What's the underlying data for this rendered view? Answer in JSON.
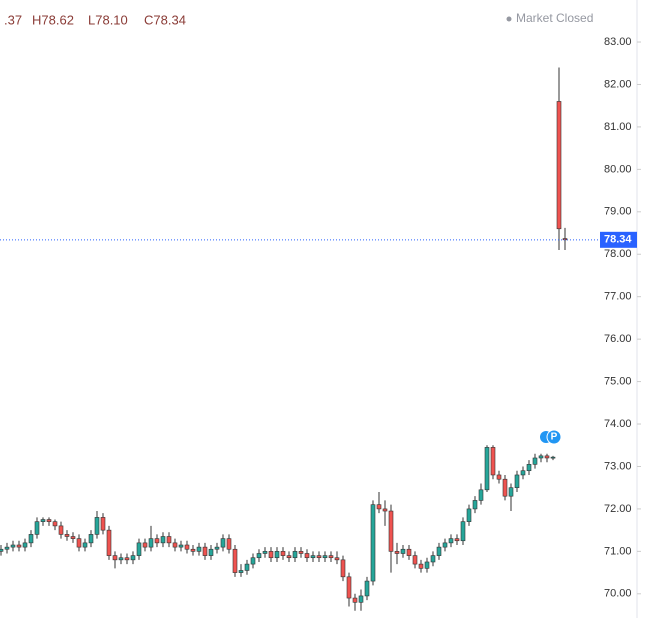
{
  "chart_data": {
    "type": "candlestick",
    "ohlc_header": [
      ".37",
      "H78.62",
      "L78.10",
      "C78.34"
    ],
    "status": "Market Closed",
    "marker": "P",
    "last_price": {
      "value": 78.34,
      "label": "78.34"
    },
    "up_color": "#26a69a",
    "down_color": "#ef5350",
    "ylim": [
      69.43,
      83.99
    ],
    "yticks": [
      {
        "value": 70,
        "label": "70.00"
      },
      {
        "value": 71,
        "label": "71.00"
      },
      {
        "value": 72,
        "label": "72.00"
      },
      {
        "value": 73,
        "label": "73.00"
      },
      {
        "value": 74,
        "label": "74.00"
      },
      {
        "value": 75,
        "label": "75.00"
      },
      {
        "value": 76,
        "label": "76.00"
      },
      {
        "value": 77,
        "label": "77.00"
      },
      {
        "value": 78,
        "label": "78.00"
      },
      {
        "value": 79,
        "label": "79.00"
      },
      {
        "value": 80,
        "label": "80.00"
      },
      {
        "value": 81,
        "label": "81.00"
      },
      {
        "value": 82,
        "label": "82.00"
      },
      {
        "value": 83,
        "label": "83.00"
      }
    ],
    "open": [
      71.0,
      71.05,
      71.1,
      71.15,
      71.1,
      71.2,
      71.4,
      71.7,
      71.75,
      71.7,
      71.6,
      71.4,
      71.35,
      71.3,
      71.1,
      71.2,
      71.4,
      71.8,
      71.5,
      70.9,
      70.8,
      70.85,
      70.8,
      70.9,
      71.2,
      71.1,
      71.3,
      71.2,
      71.35,
      71.2,
      71.1,
      71.15,
      71.05,
      71.0,
      71.1,
      70.9,
      71.05,
      71.1,
      71.3,
      71.05,
      70.5,
      70.55,
      70.7,
      70.85,
      70.95,
      71.0,
      70.85,
      71.0,
      70.9,
      70.85,
      71.0,
      70.95,
      70.85,
      70.9,
      70.85,
      70.9,
      70.85,
      70.8,
      70.4,
      69.9,
      69.8,
      69.95,
      70.3,
      72.1,
      72.0,
      71.95,
      71.0,
      70.95,
      71.05,
      70.9,
      70.7,
      70.6,
      70.75,
      70.9,
      71.1,
      71.2,
      71.3,
      71.25,
      71.7,
      72.0,
      72.2,
      72.45,
      73.45,
      72.8,
      72.7,
      72.3,
      72.5,
      72.8,
      72.9,
      73.05,
      73.2,
      73.25,
      73.2,
      81.6,
      78.37
    ],
    "high": [
      71.15,
      71.2,
      71.25,
      71.25,
      71.3,
      71.5,
      71.8,
      71.8,
      71.8,
      71.75,
      71.7,
      71.5,
      71.45,
      71.4,
      71.3,
      71.5,
      71.95,
      71.9,
      71.6,
      71.0,
      70.95,
      70.95,
      71.0,
      71.3,
      71.3,
      71.6,
      71.4,
      71.45,
      71.45,
      71.3,
      71.25,
      71.25,
      71.15,
      71.2,
      71.2,
      71.15,
      71.2,
      71.4,
      71.4,
      71.15,
      70.7,
      70.8,
      70.95,
      71.05,
      71.1,
      71.1,
      71.1,
      71.1,
      71.0,
      71.1,
      71.1,
      71.05,
      71.0,
      71.0,
      71.0,
      71.0,
      71.0,
      70.9,
      70.5,
      70.0,
      70.1,
      70.4,
      72.2,
      72.4,
      72.2,
      72.1,
      71.2,
      71.15,
      71.15,
      71.0,
      70.8,
      70.85,
      71.0,
      71.2,
      71.3,
      71.4,
      71.4,
      71.8,
      72.1,
      72.3,
      72.6,
      73.5,
      73.5,
      72.9,
      72.8,
      72.6,
      72.9,
      73.0,
      73.15,
      73.3,
      73.3,
      73.3,
      73.25,
      82.4,
      78.62
    ],
    "low": [
      70.9,
      70.95,
      71.0,
      71.0,
      71.0,
      71.1,
      71.3,
      71.6,
      71.6,
      71.5,
      71.3,
      71.25,
      71.2,
      71.0,
      71.0,
      71.1,
      71.3,
      71.4,
      70.8,
      70.6,
      70.7,
      70.7,
      70.7,
      70.8,
      71.0,
      71.0,
      71.1,
      71.1,
      71.1,
      71.0,
      71.0,
      70.95,
      70.9,
      70.9,
      70.8,
      70.8,
      70.95,
      71.0,
      70.95,
      70.4,
      70.4,
      70.45,
      70.6,
      70.75,
      70.85,
      70.75,
      70.75,
      70.8,
      70.75,
      70.75,
      70.85,
      70.75,
      70.75,
      70.75,
      70.75,
      70.75,
      70.7,
      70.3,
      69.7,
      69.6,
      69.6,
      69.85,
      70.2,
      71.9,
      71.6,
      70.5,
      70.7,
      70.85,
      70.8,
      70.6,
      70.5,
      70.5,
      70.65,
      70.8,
      71.0,
      71.1,
      71.15,
      71.15,
      71.6,
      71.9,
      72.1,
      72.4,
      72.7,
      72.6,
      72.2,
      71.95,
      72.4,
      72.7,
      72.8,
      72.95,
      73.1,
      73.1,
      73.15,
      78.1,
      78.1
    ],
    "close": [
      71.05,
      71.1,
      71.15,
      71.1,
      71.2,
      71.4,
      71.7,
      71.75,
      71.7,
      71.6,
      71.4,
      71.35,
      71.3,
      71.1,
      71.2,
      71.4,
      71.8,
      71.5,
      70.9,
      70.8,
      70.85,
      70.8,
      70.9,
      71.2,
      71.1,
      71.3,
      71.2,
      71.35,
      71.2,
      71.1,
      71.15,
      71.05,
      71.0,
      71.1,
      70.9,
      71.05,
      71.1,
      71.3,
      71.05,
      70.5,
      70.55,
      70.7,
      70.85,
      70.95,
      71.0,
      70.85,
      71.0,
      70.9,
      70.85,
      71.0,
      70.95,
      70.85,
      70.9,
      70.85,
      70.9,
      70.85,
      70.8,
      70.4,
      69.9,
      69.8,
      69.95,
      70.3,
      72.1,
      72.0,
      71.95,
      71.0,
      70.95,
      71.05,
      70.9,
      70.7,
      70.6,
      70.75,
      70.9,
      71.1,
      71.2,
      71.3,
      71.25,
      71.7,
      72.0,
      72.2,
      72.45,
      73.45,
      72.8,
      72.7,
      72.3,
      72.5,
      72.8,
      72.9,
      73.05,
      73.2,
      73.25,
      73.2,
      73.22,
      78.6,
      78.34
    ]
  }
}
